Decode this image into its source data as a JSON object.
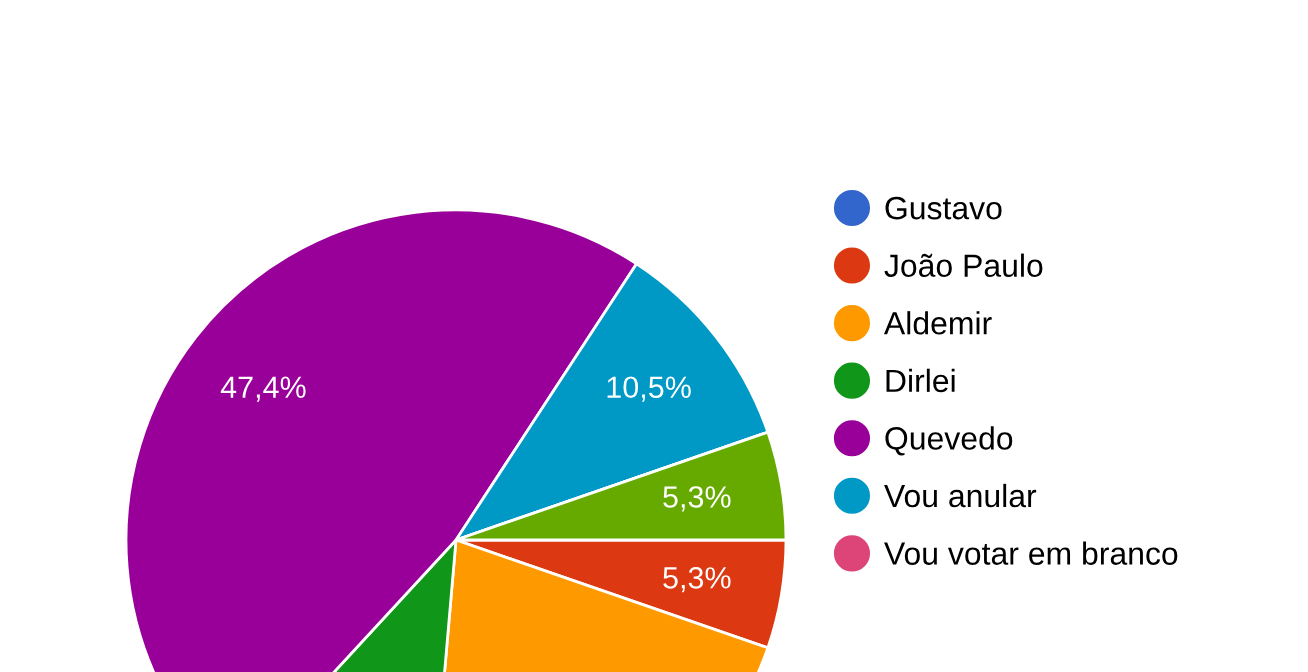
{
  "chart_data": {
    "type": "pie",
    "categories": [
      "Gustavo",
      "João Paulo",
      "Aldemir",
      "Dirlei",
      "Quevedo",
      "Vou anular",
      "Vou votar em branco",
      null
    ],
    "values": [
      0,
      5.3,
      21.1,
      10.5,
      47.4,
      10.5,
      0,
      5.3
    ],
    "colors": [
      "#3366cc",
      "#dc3912",
      "#ff9900",
      "#109618",
      "#990099",
      "#0099c6",
      "#dd4477",
      "#66aa00"
    ],
    "value_labels": [
      null,
      "5,3%",
      null,
      null,
      "47,4%",
      "10,5%",
      null,
      "5,3%"
    ],
    "legend": "right"
  }
}
